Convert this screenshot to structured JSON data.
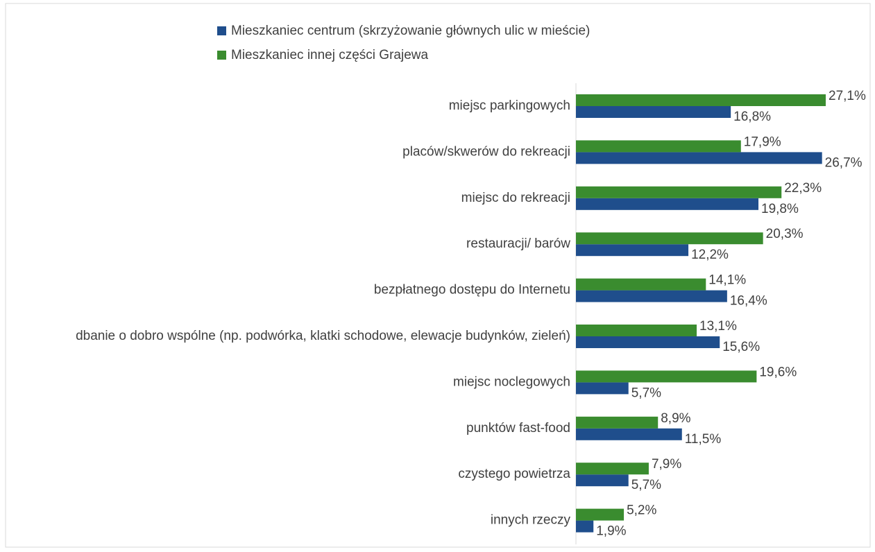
{
  "chart_data": {
    "type": "bar",
    "orientation": "horizontal",
    "categories": [
      "miejsc parkingowych",
      "placów/skwerów do rekreacji",
      "miejsc do rekreacji",
      "restauracji/ barów",
      "bezpłatnego dostępu do Internetu",
      "dbanie o dobro wspólne (np. podwórka, klatki schodowe, elewacje budynków, zieleń)",
      "miejsc noclegowych",
      "punktów fast-food",
      "czystego powietrza",
      "innych rzeczy"
    ],
    "series": [
      {
        "name": "Mieszkaniec centrum (skrzyżowanie głównych ulic w mieście)",
        "color": "#1f4e8c",
        "values": [
          16.8,
          26.7,
          19.8,
          12.2,
          16.4,
          15.6,
          5.7,
          11.5,
          5.7,
          1.9
        ],
        "value_labels": [
          "16,8%",
          "26,7%",
          "19,8%",
          "12,2%",
          "16,4%",
          "15,6%",
          "5,7%",
          "11,5%",
          "5,7%",
          "1,9%"
        ]
      },
      {
        "name": "Mieszkaniec innej części Grajewa",
        "color": "#3a8c2f",
        "values": [
          27.1,
          17.9,
          22.3,
          20.3,
          14.1,
          13.1,
          19.6,
          8.9,
          7.9,
          5.2
        ],
        "value_labels": [
          "27,1%",
          "17,9%",
          "22,3%",
          "20,3%",
          "14,1%",
          "13,1%",
          "19,6%",
          "8,9%",
          "7,9%",
          "5,2%"
        ]
      }
    ],
    "legend": "top"
  }
}
